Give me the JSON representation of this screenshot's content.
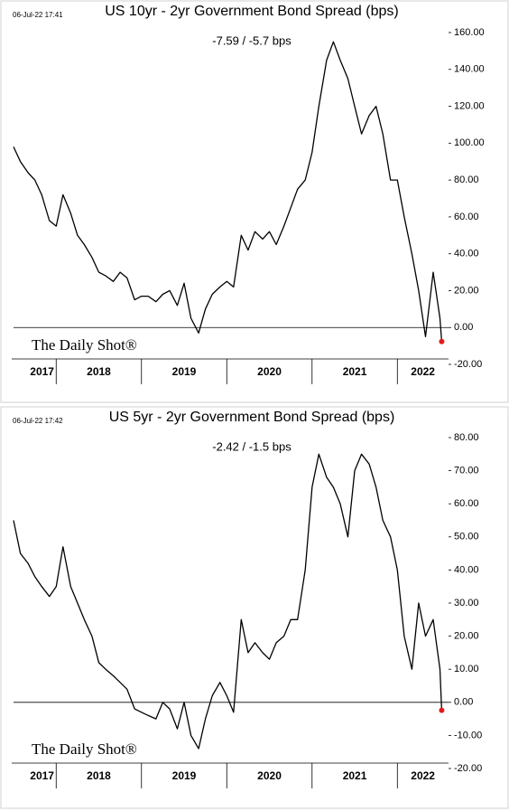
{
  "chart_data": [
    {
      "type": "line",
      "timestamp": "06-Jul-22 17:41",
      "title": "US 10yr - 2yr Government Bond Spread (bps)",
      "annotation": "-7.59  /  -5.7 bps",
      "watermark": "The Daily Shot®",
      "x": [
        2017.5,
        2017.58,
        2017.67,
        2017.75,
        2017.83,
        2017.92,
        2018.0,
        2018.08,
        2018.17,
        2018.25,
        2018.33,
        2018.42,
        2018.5,
        2018.58,
        2018.67,
        2018.75,
        2018.83,
        2018.92,
        2019.0,
        2019.08,
        2019.17,
        2019.25,
        2019.33,
        2019.42,
        2019.5,
        2019.58,
        2019.67,
        2019.75,
        2019.83,
        2019.92,
        2020.0,
        2020.08,
        2020.17,
        2020.25,
        2020.33,
        2020.42,
        2020.5,
        2020.58,
        2020.67,
        2020.75,
        2020.83,
        2020.92,
        2021.0,
        2021.08,
        2021.17,
        2021.25,
        2021.33,
        2021.42,
        2021.5,
        2021.58,
        2021.67,
        2021.75,
        2021.83,
        2021.92,
        2022.0,
        2022.08,
        2022.17,
        2022.25,
        2022.33,
        2022.42,
        2022.5,
        2022.52
      ],
      "values": [
        98,
        90,
        84,
        80,
        72,
        58,
        55,
        72,
        62,
        50,
        45,
        38,
        30,
        28,
        25,
        30,
        27,
        15,
        17,
        17,
        14,
        18,
        20,
        12,
        24,
        5,
        -3,
        10,
        18,
        22,
        25,
        22,
        50,
        42,
        52,
        48,
        52,
        45,
        55,
        65,
        75,
        80,
        95,
        120,
        145,
        155,
        145,
        135,
        120,
        105,
        115,
        120,
        105,
        80,
        80,
        60,
        40,
        20,
        -5,
        30,
        5,
        -7.59
      ],
      "color": "#000000",
      "end_marker_color": "#e41a1c",
      "xlim": [
        2017.5,
        2022.6
      ],
      "xticks": [
        2018,
        2019,
        2020,
        2021,
        2022
      ],
      "year_labels": [
        2017,
        2018,
        2019,
        2020,
        2021,
        2022
      ],
      "ylim": [
        -20,
        160
      ],
      "yticks": [
        {
          "value": -20,
          "label": "-20.00"
        },
        {
          "value": 0,
          "label": "0.00"
        },
        {
          "value": 20,
          "label": "20.00"
        },
        {
          "value": 40,
          "label": "40.00"
        },
        {
          "value": 60,
          "label": "60.00"
        },
        {
          "value": 80,
          "label": "80.00"
        },
        {
          "value": 100,
          "label": "100.00"
        },
        {
          "value": 120,
          "label": "120.00"
        },
        {
          "value": 140,
          "label": "140.00"
        },
        {
          "value": 160,
          "label": "160.00"
        }
      ]
    },
    {
      "type": "line",
      "timestamp": "06-Jul-22 17:42",
      "title": "US 5yr - 2yr Government Bond Spread (bps)",
      "annotation": "-2.42  /  -1.5 bps",
      "watermark": "The Daily Shot®",
      "x": [
        2017.5,
        2017.58,
        2017.67,
        2017.75,
        2017.83,
        2017.92,
        2018.0,
        2018.08,
        2018.17,
        2018.25,
        2018.33,
        2018.42,
        2018.5,
        2018.58,
        2018.67,
        2018.75,
        2018.83,
        2018.92,
        2019.0,
        2019.08,
        2019.17,
        2019.25,
        2019.33,
        2019.42,
        2019.5,
        2019.58,
        2019.67,
        2019.75,
        2019.83,
        2019.92,
        2020.0,
        2020.08,
        2020.17,
        2020.25,
        2020.33,
        2020.42,
        2020.5,
        2020.58,
        2020.67,
        2020.75,
        2020.83,
        2020.92,
        2021.0,
        2021.08,
        2021.17,
        2021.25,
        2021.33,
        2021.42,
        2021.5,
        2021.58,
        2021.67,
        2021.75,
        2021.83,
        2021.92,
        2022.0,
        2022.08,
        2022.17,
        2022.25,
        2022.33,
        2022.42,
        2022.5,
        2022.52
      ],
      "values": [
        55,
        45,
        42,
        38,
        35,
        32,
        35,
        47,
        35,
        30,
        25,
        20,
        12,
        10,
        8,
        6,
        4,
        -2,
        -3,
        -4,
        -5,
        0,
        -2,
        -8,
        0,
        -10,
        -14,
        -5,
        2,
        6,
        2,
        -3,
        25,
        15,
        18,
        15,
        13,
        18,
        20,
        25,
        25,
        40,
        65,
        75,
        68,
        65,
        60,
        50,
        70,
        75,
        72,
        65,
        55,
        50,
        40,
        20,
        10,
        30,
        20,
        25,
        10,
        -2.42
      ],
      "color": "#000000",
      "end_marker_color": "#e41a1c",
      "xlim": [
        2017.5,
        2022.6
      ],
      "xticks": [
        2018,
        2019,
        2020,
        2021,
        2022
      ],
      "year_labels": [
        2017,
        2018,
        2019,
        2020,
        2021,
        2022
      ],
      "ylim": [
        -20,
        80
      ],
      "yticks": [
        {
          "value": -20,
          "label": "-20.00"
        },
        {
          "value": -10,
          "label": "-10.00"
        },
        {
          "value": 0,
          "label": "0.00"
        },
        {
          "value": 10,
          "label": "10.00"
        },
        {
          "value": 20,
          "label": "20.00"
        },
        {
          "value": 30,
          "label": "30.00"
        },
        {
          "value": 40,
          "label": "40.00"
        },
        {
          "value": 50,
          "label": "50.00"
        },
        {
          "value": 60,
          "label": "60.00"
        },
        {
          "value": 70,
          "label": "70.00"
        },
        {
          "value": 80,
          "label": "80.00"
        }
      ]
    }
  ]
}
